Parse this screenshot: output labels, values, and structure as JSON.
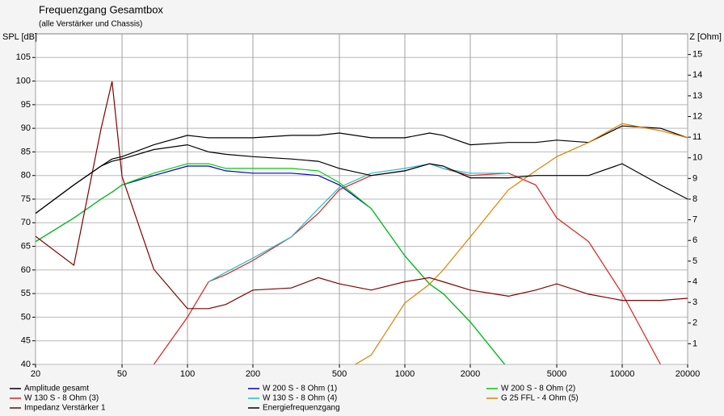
{
  "chart_data": {
    "type": "line",
    "title": "Frequenzgang Gesamtbox",
    "subtitle": "(alle Verstärker und Chassis)",
    "y_label": "SPL [dB]",
    "y2_label": "Z [Ohm]",
    "log_x": true,
    "grid": true,
    "x": [
      20,
      30,
      40,
      45,
      50,
      70,
      100,
      125,
      150,
      200,
      300,
      400,
      500,
      700,
      1000,
      1300,
      1500,
      2000,
      3000,
      4000,
      5000,
      7000,
      10000,
      15000,
      20000
    ],
    "xlim": [
      20,
      20000
    ],
    "xticks": [
      20,
      50,
      100,
      200,
      500,
      1000,
      2000,
      5000,
      10000,
      20000
    ],
    "ylim": [
      40,
      110
    ],
    "yticks": [
      40,
      45,
      50,
      55,
      60,
      65,
      70,
      75,
      80,
      85,
      90,
      95,
      100,
      105
    ],
    "y2lim": [
      0,
      16
    ],
    "y2ticks": [
      1,
      2,
      3,
      4,
      5,
      6,
      7,
      8,
      9,
      10,
      11,
      12,
      13,
      14,
      15
    ],
    "series": [
      {
        "name": "Amplitude gesamt",
        "color": "#000000",
        "values": [
          72,
          78,
          82,
          83.5,
          84,
          86.5,
          88.5,
          88,
          88,
          88,
          88.5,
          88.5,
          89,
          88,
          88,
          89,
          88.5,
          86.5,
          87,
          87,
          87.5,
          87,
          90.5,
          90,
          88
        ]
      },
      {
        "name": "W 200 S - 8 Ohm (1)",
        "color": "#0000cc",
        "values": [
          66,
          71,
          75,
          76.5,
          78,
          80,
          82,
          82,
          81,
          80.5,
          80.5,
          80,
          78,
          73,
          63,
          57,
          55,
          49,
          39,
          null,
          null,
          null,
          null,
          null,
          null
        ]
      },
      {
        "name": "W 200 S - 8 Ohm (2)",
        "color": "#00cc00",
        "values": [
          66,
          71,
          75,
          76.5,
          78,
          80.5,
          82.5,
          82.5,
          81.5,
          81.5,
          81.5,
          81,
          78.5,
          73,
          63,
          57,
          55,
          49,
          39,
          null,
          null,
          null,
          null,
          null,
          null
        ]
      },
      {
        "name": "W 130 S - 8 Ohm (3)",
        "color": "#e02020",
        "values": [
          null,
          null,
          null,
          null,
          null,
          40,
          50,
          57.5,
          59,
          62,
          67,
          72,
          77,
          80,
          81,
          82.5,
          81.5,
          80,
          80.5,
          78,
          71,
          66,
          55,
          40,
          null
        ]
      },
      {
        "name": "W 130 S - 8 Ohm (4)",
        "color": "#20c0d0",
        "values": [
          null,
          null,
          null,
          null,
          null,
          null,
          null,
          57.5,
          59.5,
          62.5,
          67,
          73,
          77.5,
          80.5,
          81.5,
          82.5,
          81.5,
          80.5,
          80.5,
          null,
          null,
          null,
          null,
          null,
          null
        ]
      },
      {
        "name": "G 25 FFL - 4 Ohm (5)",
        "color": "#e08000",
        "values": [
          null,
          null,
          null,
          null,
          null,
          null,
          null,
          null,
          null,
          null,
          null,
          null,
          38,
          42,
          53,
          57,
          60,
          67,
          77,
          81,
          84,
          87,
          91,
          89.5,
          88
        ]
      },
      {
        "name": "Impedanz Verstärker 1",
        "color": "#800000",
        "axis": "y2",
        "values": [
          6.2,
          4.8,
          11.4,
          13.7,
          9.1,
          4.6,
          2.7,
          2.7,
          2.9,
          3.6,
          3.7,
          4.2,
          3.9,
          3.6,
          4.0,
          4.2,
          4.0,
          3.6,
          3.3,
          3.6,
          3.9,
          3.4,
          3.1,
          3.1,
          3.2
        ]
      },
      {
        "name": "Energiefrequenzgang",
        "color": "#000000",
        "values": [
          72,
          78,
          82,
          83,
          83.5,
          85.5,
          86.5,
          85,
          84.5,
          84,
          83.5,
          83,
          81.5,
          80,
          81,
          82.5,
          82,
          79.5,
          79.5,
          80,
          80,
          80,
          82.5,
          78,
          75
        ]
      }
    ]
  }
}
